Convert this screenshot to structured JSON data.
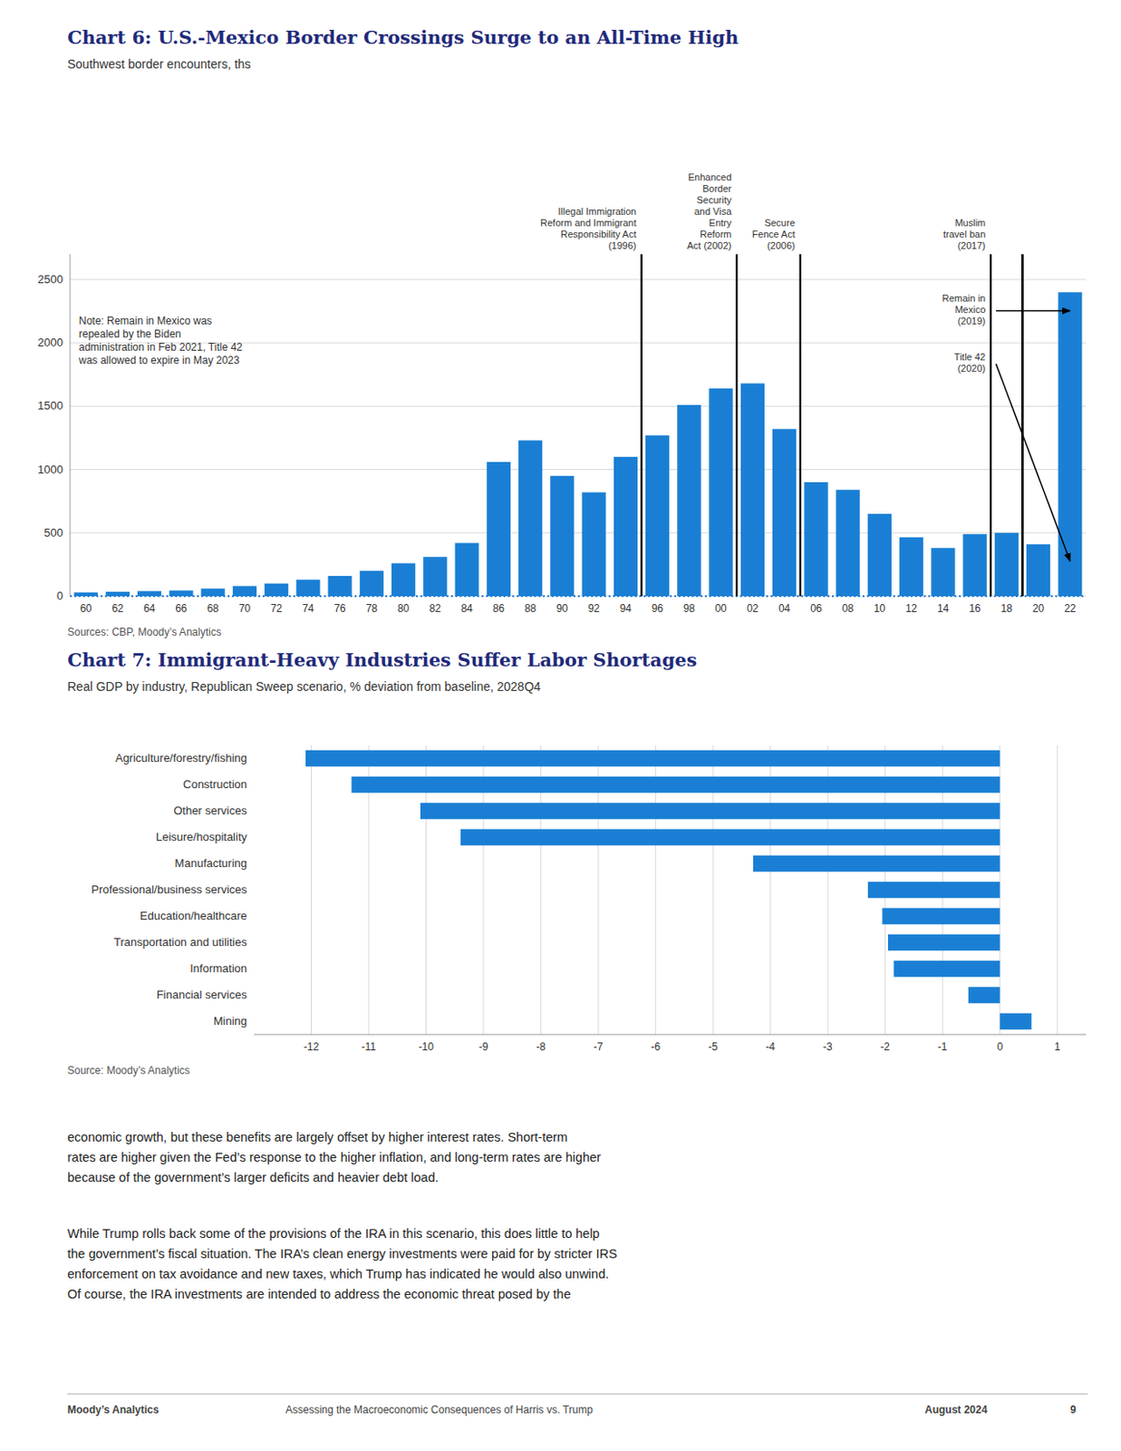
{
  "chart_data": [
    {
      "type": "bar",
      "title": "Chart 6: U.S.-Mexico Border Crossings Surge to an All-Time High",
      "subtitle": "Southwest border encounters, ths",
      "source": "Sources: CBP, Moody’s Analytics",
      "categories": [
        "60",
        "62",
        "64",
        "66",
        "68",
        "70",
        "72",
        "74",
        "76",
        "78",
        "80",
        "82",
        "84",
        "86",
        "88",
        "90",
        "92",
        "94",
        "96",
        "98",
        "00",
        "02",
        "04",
        "06",
        "08",
        "10",
        "12",
        "14",
        "16",
        "18",
        "20",
        "22"
      ],
      "values": [
        30,
        35,
        40,
        45,
        60,
        80,
        100,
        130,
        160,
        200,
        260,
        310,
        420,
        1060,
        1230,
        950,
        820,
        1100,
        1270,
        1510,
        1640,
        1680,
        1320,
        900,
        840,
        650,
        465,
        380,
        490,
        500,
        410,
        2400
      ],
      "color": "#1a7fd4",
      "ylim": [
        0,
        2700
      ],
      "yticks": [
        0,
        500,
        1000,
        1500,
        2000,
        2500
      ],
      "grid": true,
      "annotations": [
        {
          "text": "Illegal Immigration\nReform and Immigrant\nResponsibility Act\n(1996)",
          "category": "96"
        },
        {
          "text": "Enhanced\nBorder\nSecurity\nand Visa\nEntry\nReform\nAct (2002)",
          "category": "02"
        },
        {
          "text": "Secure\nFence Act\n(2006)",
          "category": "06"
        },
        {
          "text": "Muslim\ntravel ban\n(2017)",
          "category": "18"
        },
        {
          "text": "Remain in\nMexico\n(2019)",
          "category": "20"
        },
        {
          "text": "Title 42\n(2020)",
          "category": "20"
        }
      ],
      "note": "Note: Remain in Mexico was\nrepealed by the Biden\nadministration in Feb 2021, Title 42\nwas allowed to expire in May 2023"
    },
    {
      "type": "bar",
      "orientation": "horizontal",
      "title": "Chart 7: Immigrant-Heavy Industries Suffer Labor Shortages",
      "subtitle": "Real GDP by industry, Republican Sweep scenario, % deviation from baseline, 2028Q4",
      "source": "Source: Moody’s Analytics",
      "categories": [
        "Mining",
        "Financial services",
        "Information",
        "Transportation and utilities",
        "Education/healthcare",
        "Professional/business services",
        "Manufacturing",
        "Leisure/hospitality",
        "Other services",
        "Construction",
        "Agriculture/forestry/fishing"
      ],
      "values": [
        0.55,
        -0.55,
        -1.85,
        -1.95,
        -2.05,
        -2.3,
        -4.3,
        -9.4,
        -10.1,
        -11.3,
        -12.1
      ],
      "color": "#1a7fd4",
      "xlim": [
        -13,
        1.5
      ],
      "xticks": [
        -12,
        -11,
        -10,
        -9,
        -8,
        -7,
        -6,
        -5,
        -4,
        -3,
        -2,
        -1,
        0,
        1
      ],
      "grid": true
    }
  ],
  "body_text": [
    "economic growth, but these benefits are largely offset by higher interest rates. Short-term\nrates are higher given the Fed’s response to the higher inflation, and long-term rates are higher\nbecause of the government’s larger deficits and heavier debt load.",
    "While Trump rolls back some of the provisions of the IRA in this scenario, this does little to help\nthe government’s fiscal situation. The IRA’s clean energy investments were paid for by stricter IRS\nenforcement on tax avoidance and new taxes, which Trump has indicated he would also unwind.\nOf course, the IRA investments are intended to address the economic threat posed by the"
  ],
  "footer": [
    "Moody’s Analytics",
    "Assessing the Macroeconomic Consequences of Harris vs. Trump",
    "August 2024",
    "9"
  ]
}
